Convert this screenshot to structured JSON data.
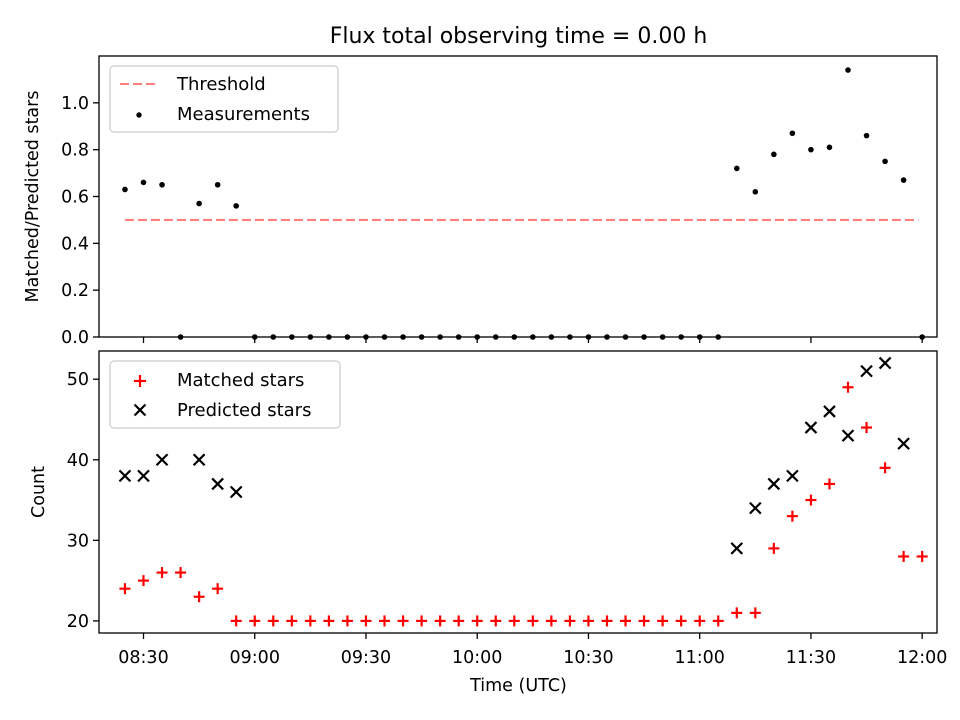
{
  "figure": {
    "title": "Flux total observing time = 0.00 h",
    "xlabel": "Time (UTC)"
  },
  "chart_data": [
    {
      "type": "scatter",
      "ylabel": "Matched/Predicted stars",
      "ylim": [
        0,
        1.2
      ],
      "yticks": [
        "0.0",
        "0.2",
        "0.4",
        "0.6",
        "0.8",
        "1.0"
      ],
      "xticks_shown": false,
      "legend_position": "top-left",
      "threshold": {
        "name": "Threshold",
        "value": 0.5,
        "x_range": [
          "08:25",
          "11:59"
        ],
        "color": "#ff7f7f",
        "style": "dashed"
      },
      "series": [
        {
          "name": "Measurements",
          "marker": "dot",
          "color": "#000000",
          "points": [
            [
              "08:25",
              0.63
            ],
            [
              "08:30",
              0.66
            ],
            [
              "08:35",
              0.65
            ],
            [
              "08:40",
              0.0
            ],
            [
              "08:45",
              0.57
            ],
            [
              "08:50",
              0.65
            ],
            [
              "08:55",
              0.56
            ],
            [
              "09:00",
              0.0
            ],
            [
              "09:05",
              0.0
            ],
            [
              "09:10",
              0.0
            ],
            [
              "09:15",
              0.0
            ],
            [
              "09:20",
              0.0
            ],
            [
              "09:25",
              0.0
            ],
            [
              "09:30",
              0.0
            ],
            [
              "09:35",
              0.0
            ],
            [
              "09:40",
              0.0
            ],
            [
              "09:45",
              0.0
            ],
            [
              "09:50",
              0.0
            ],
            [
              "09:55",
              0.0
            ],
            [
              "10:00",
              0.0
            ],
            [
              "10:05",
              0.0
            ],
            [
              "10:10",
              0.0
            ],
            [
              "10:15",
              0.0
            ],
            [
              "10:20",
              0.0
            ],
            [
              "10:25",
              0.0
            ],
            [
              "10:30",
              0.0
            ],
            [
              "10:35",
              0.0
            ],
            [
              "10:40",
              0.0
            ],
            [
              "10:45",
              0.0
            ],
            [
              "10:50",
              0.0
            ],
            [
              "10:55",
              0.0
            ],
            [
              "11:00",
              0.0
            ],
            [
              "11:05",
              0.0
            ],
            [
              "11:10",
              0.72
            ],
            [
              "11:15",
              0.62
            ],
            [
              "11:20",
              0.78
            ],
            [
              "11:25",
              0.87
            ],
            [
              "11:30",
              0.8
            ],
            [
              "11:35",
              0.81
            ],
            [
              "11:40",
              1.14
            ],
            [
              "11:45",
              0.86
            ],
            [
              "11:50",
              0.75
            ],
            [
              "11:55",
              0.67
            ],
            [
              "12:00",
              0.0
            ]
          ]
        }
      ]
    },
    {
      "type": "scatter",
      "ylabel": "Count",
      "ylim": [
        18.5,
        53.5
      ],
      "yticks": [
        20,
        30,
        40,
        50
      ],
      "xlim": [
        "08:18",
        "12:04"
      ],
      "xticks": [
        "08:30",
        "09:00",
        "09:30",
        "10:00",
        "10:30",
        "11:00",
        "11:30",
        "12:00"
      ],
      "legend_position": "top-left",
      "series": [
        {
          "name": "Matched stars",
          "marker": "plus",
          "color": "#ff0000",
          "points": [
            [
              "08:25",
              24
            ],
            [
              "08:30",
              25
            ],
            [
              "08:35",
              26
            ],
            [
              "08:40",
              26
            ],
            [
              "08:45",
              23
            ],
            [
              "08:50",
              24
            ],
            [
              "08:55",
              20
            ],
            [
              "09:00",
              20
            ],
            [
              "09:05",
              20
            ],
            [
              "09:10",
              20
            ],
            [
              "09:15",
              20
            ],
            [
              "09:20",
              20
            ],
            [
              "09:25",
              20
            ],
            [
              "09:30",
              20
            ],
            [
              "09:35",
              20
            ],
            [
              "09:40",
              20
            ],
            [
              "09:45",
              20
            ],
            [
              "09:50",
              20
            ],
            [
              "09:55",
              20
            ],
            [
              "10:00",
              20
            ],
            [
              "10:05",
              20
            ],
            [
              "10:10",
              20
            ],
            [
              "10:15",
              20
            ],
            [
              "10:20",
              20
            ],
            [
              "10:25",
              20
            ],
            [
              "10:30",
              20
            ],
            [
              "10:35",
              20
            ],
            [
              "10:40",
              20
            ],
            [
              "10:45",
              20
            ],
            [
              "10:50",
              20
            ],
            [
              "10:55",
              20
            ],
            [
              "11:00",
              20
            ],
            [
              "11:05",
              20
            ],
            [
              "11:10",
              21
            ],
            [
              "11:15",
              21
            ],
            [
              "11:20",
              29
            ],
            [
              "11:25",
              33
            ],
            [
              "11:30",
              35
            ],
            [
              "11:35",
              37
            ],
            [
              "11:40",
              49
            ],
            [
              "11:45",
              44
            ],
            [
              "11:50",
              39
            ],
            [
              "11:55",
              28
            ],
            [
              "12:00",
              28
            ]
          ]
        },
        {
          "name": "Predicted stars",
          "marker": "x",
          "color": "#000000",
          "points": [
            [
              "08:25",
              38
            ],
            [
              "08:30",
              38
            ],
            [
              "08:35",
              40
            ],
            [
              "08:45",
              40
            ],
            [
              "08:50",
              37
            ],
            [
              "08:55",
              36
            ],
            [
              "11:10",
              29
            ],
            [
              "11:15",
              34
            ],
            [
              "11:20",
              37
            ],
            [
              "11:25",
              38
            ],
            [
              "11:30",
              44
            ],
            [
              "11:35",
              46
            ],
            [
              "11:40",
              43
            ],
            [
              "11:45",
              51
            ],
            [
              "11:50",
              52
            ],
            [
              "11:55",
              42
            ]
          ]
        }
      ]
    }
  ]
}
